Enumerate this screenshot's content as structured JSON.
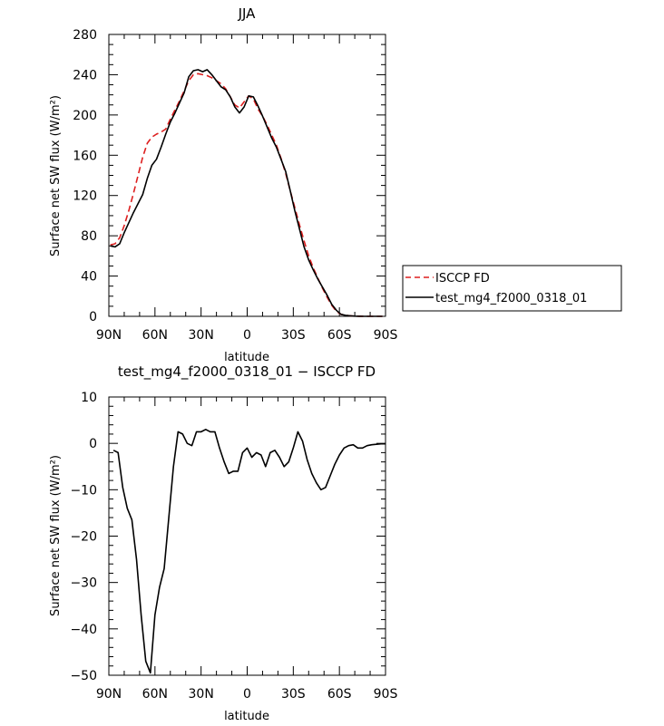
{
  "chart_data": [
    {
      "type": "line",
      "title": "JJA",
      "xlabel": "latitude",
      "ylabel": "Surface net SW flux (W/m²)",
      "xlim": [
        90,
        -90
      ],
      "ylim": [
        0,
        280
      ],
      "x_ticks": [
        "90N",
        "60N",
        "30N",
        "0",
        "30S",
        "60S",
        "90S"
      ],
      "y_ticks": [
        "0",
        "40",
        "80",
        "120",
        "160",
        "200",
        "240",
        "280"
      ],
      "legend_position": "right",
      "series": [
        {
          "name": "ISCCP FD",
          "color": "#dd1f1f",
          "dash": "dashed",
          "x": [
            89,
            86,
            83,
            80,
            77,
            74,
            71,
            68,
            65,
            62,
            59,
            56,
            53,
            50,
            47,
            44,
            41,
            38,
            35,
            32,
            29,
            26,
            23,
            20,
            17,
            14,
            11,
            8,
            5,
            2,
            -1,
            -4,
            -7,
            -10,
            -13,
            -16,
            -19,
            -22,
            -25,
            -28,
            -31,
            -34,
            -37,
            -40,
            -43,
            -46,
            -49,
            -52,
            -55,
            -58,
            -61,
            -64,
            -67,
            -70,
            -73,
            -76,
            -79,
            -82,
            -85,
            -88
          ],
          "y": [
            71,
            72,
            78,
            90,
            105,
            122,
            140,
            158,
            172,
            178,
            181,
            183,
            186,
            196,
            205,
            214,
            224,
            234,
            240,
            241,
            240,
            239,
            237,
            234,
            231,
            226,
            218,
            210,
            207,
            213,
            219,
            216,
            206,
            199,
            190,
            180,
            170,
            157,
            142,
            125,
            108,
            91,
            75,
            60,
            48,
            38,
            28,
            19,
            11,
            5,
            2,
            1,
            0.5,
            0.2,
            0.1,
            0,
            0,
            0,
            0,
            0
          ]
        },
        {
          "name": "test_mg4_f2000_0318_01",
          "color": "#000000",
          "dash": "solid",
          "x": [
            89,
            86,
            83,
            80,
            77,
            74,
            71,
            68,
            65,
            62,
            59,
            56,
            53,
            50,
            47,
            44,
            41,
            38,
            35,
            32,
            29,
            26,
            23,
            20,
            17,
            14,
            11,
            8,
            5,
            2,
            -1,
            -4,
            -7,
            -10,
            -13,
            -16,
            -19,
            -22,
            -25,
            -28,
            -31,
            -34,
            -37,
            -40,
            -43,
            -46,
            -49,
            -52,
            -55,
            -58,
            -61,
            -64,
            -67,
            -70,
            -73,
            -76,
            -79,
            -82,
            -85,
            -88
          ],
          "y": [
            70,
            69,
            72,
            83,
            93,
            103,
            112,
            121,
            137,
            150,
            156,
            168,
            181,
            193,
            202,
            212,
            222,
            238,
            244,
            245,
            243,
            245,
            240,
            234,
            228,
            225,
            218,
            208,
            202,
            208,
            219,
            218,
            209,
            199,
            188,
            177,
            168,
            156,
            144,
            125,
            105,
            87,
            69,
            56,
            46,
            37,
            29,
            21,
            12,
            6,
            2,
            1,
            0.5,
            0.2,
            0.1,
            0,
            0,
            0,
            0,
            0
          ]
        }
      ]
    },
    {
      "type": "line",
      "title": "test_mg4_f2000_0318_01 − ISCCP FD",
      "xlabel": "latitude",
      "ylabel": "Surface net SW flux (W/m²)",
      "xlim": [
        90,
        -90
      ],
      "ylim": [
        -50,
        10
      ],
      "x_ticks": [
        "90N",
        "60N",
        "30N",
        "0",
        "30S",
        "60S",
        "90S"
      ],
      "y_ticks": [
        "−50",
        "−40",
        "−30",
        "−20",
        "−10",
        "0",
        "10"
      ],
      "series": [
        {
          "color": "#000000",
          "dash": "solid",
          "x": [
            87,
            84,
            81,
            78,
            75,
            72,
            69,
            66,
            63,
            60,
            57,
            54,
            51,
            48,
            45,
            42,
            39,
            36,
            33,
            30,
            27,
            24,
            21,
            18,
            15,
            12,
            9,
            6,
            3,
            0,
            -3,
            -6,
            -9,
            -12,
            -15,
            -18,
            -21,
            -24,
            -27,
            -30,
            -33,
            -36,
            -39,
            -42,
            -45,
            -48,
            -51,
            -54,
            -57,
            -60,
            -63,
            -66,
            -69,
            -72,
            -75,
            -78,
            -81,
            -84,
            -87,
            -90
          ],
          "y": [
            -1.5,
            -2,
            -9.5,
            -14,
            -16.5,
            -25,
            -37,
            -47,
            -49.5,
            -37,
            -31,
            -27,
            -16,
            -5,
            2.5,
            2,
            0,
            -0.5,
            2.5,
            2.5,
            3,
            2.5,
            2.5,
            -1,
            -4,
            -6.5,
            -6,
            -6,
            -2,
            -1,
            -3,
            -2,
            -2.5,
            -5,
            -2,
            -1.5,
            -3,
            -5,
            -4,
            -1,
            2.5,
            0.5,
            -3.5,
            -6.5,
            -8.5,
            -10,
            -9.5,
            -7,
            -4.5,
            -2.5,
            -1,
            -0.5,
            -0.3,
            -1,
            -1,
            -0.5,
            -0.3,
            -0.2,
            -0.1,
            -0.1
          ]
        }
      ]
    }
  ],
  "legend": {
    "items": [
      "ISCCP FD",
      "test_mg4_f2000_0318_01"
    ]
  }
}
